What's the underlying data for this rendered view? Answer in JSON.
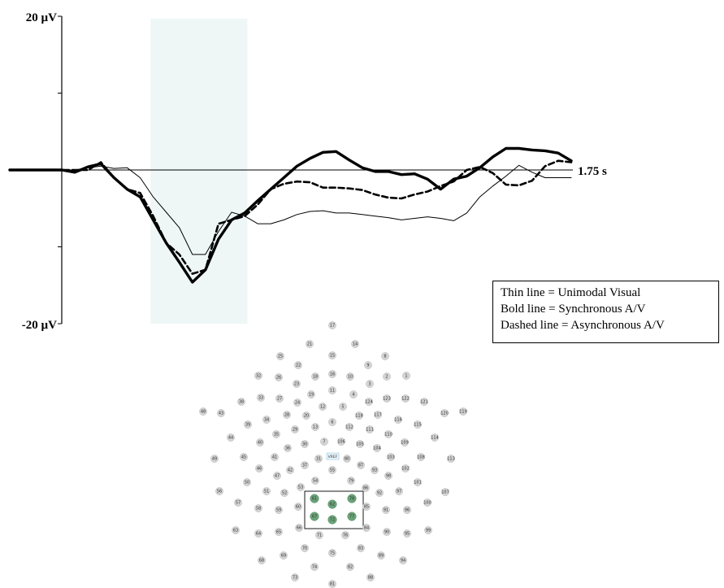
{
  "chart_data": {
    "type": "line",
    "title": "",
    "y_top_label": "20 µV",
    "y_bottom_label": "-20 µV",
    "x_end_label": "1.75 s",
    "ylim": [
      -20,
      20
    ],
    "xlim": [
      -0.2,
      1.75
    ],
    "shaded_window": [
      0.14,
      0.51
    ],
    "shade_color": "#eef7f6",
    "series": [
      {
        "id": "unimodal",
        "style": "thin",
        "x": [
          -0.2,
          -0.15,
          -0.1,
          -0.05,
          0.0,
          0.05,
          0.1,
          0.15,
          0.2,
          0.25,
          0.3,
          0.35,
          0.4,
          0.45,
          0.5,
          0.55,
          0.6,
          0.65,
          0.7,
          0.75,
          0.8,
          0.85,
          0.9,
          0.95,
          1.0,
          1.05,
          1.1,
          1.15,
          1.2,
          1.25,
          1.3,
          1.35,
          1.4,
          1.45,
          1.5,
          1.55,
          1.6,
          1.65,
          1.7,
          1.75
        ],
        "y": [
          0,
          0,
          0.3,
          0.5,
          0.2,
          0.3,
          -1,
          -3.5,
          -5.5,
          -7.5,
          -11,
          -11,
          -8,
          -5.5,
          -6,
          -7,
          -7,
          -6.5,
          -5.8,
          -5.4,
          -5.3,
          -5.6,
          -5.6,
          -5.8,
          -6,
          -6.2,
          -6.5,
          -6.3,
          -6.1,
          -6.3,
          -6.6,
          -5.6,
          -3.5,
          -2.1,
          -0.8,
          0.6,
          -0.3,
          -1,
          -1,
          -1
        ]
      },
      {
        "id": "synchronous",
        "style": "bold",
        "x": [
          -0.2,
          -0.15,
          -0.1,
          -0.05,
          0.0,
          0.05,
          0.1,
          0.15,
          0.2,
          0.25,
          0.3,
          0.35,
          0.4,
          0.45,
          0.5,
          0.55,
          0.6,
          0.65,
          0.7,
          0.75,
          0.8,
          0.85,
          0.9,
          0.95,
          1.0,
          1.05,
          1.1,
          1.15,
          1.2,
          1.25,
          1.3,
          1.35,
          1.4,
          1.45,
          1.5,
          1.55,
          1.6,
          1.65,
          1.7,
          1.75
        ],
        "y": [
          0,
          -0.3,
          0.4,
          0.8,
          -1,
          -2.5,
          -3.5,
          -6.5,
          -9.5,
          -12,
          -14.6,
          -13,
          -9,
          -6.5,
          -5.6,
          -4,
          -2.5,
          -1,
          0.5,
          1.5,
          2.3,
          2.4,
          1.3,
          0.3,
          -0.2,
          -0.2,
          -0.6,
          -0.5,
          -1.2,
          -2.5,
          -1.2,
          -0.8,
          0.3,
          1.7,
          2.8,
          2.8,
          2.6,
          2.5,
          2.2,
          1.2
        ]
      },
      {
        "id": "asynchronous",
        "style": "dashed",
        "x": [
          -0.2,
          -0.15,
          -0.1,
          -0.05,
          0.0,
          0.05,
          0.1,
          0.15,
          0.2,
          0.25,
          0.3,
          0.35,
          0.4,
          0.45,
          0.5,
          0.55,
          0.6,
          0.65,
          0.7,
          0.75,
          0.8,
          0.85,
          0.9,
          0.95,
          1.0,
          1.05,
          1.1,
          1.15,
          1.2,
          1.25,
          1.3,
          1.35,
          1.4,
          1.45,
          1.5,
          1.55,
          1.6,
          1.65,
          1.7,
          1.75
        ],
        "y": [
          0,
          0,
          0,
          1,
          -1,
          -2.5,
          -3,
          -6,
          -9.5,
          -11,
          -13.5,
          -13,
          -7,
          -6.5,
          -6,
          -4.5,
          -2.5,
          -1.8,
          -1.5,
          -1.6,
          -2.3,
          -2.3,
          -2.4,
          -2.6,
          -3.2,
          -3.6,
          -3.7,
          -3.2,
          -2.8,
          -2.1,
          -1.5,
          0,
          0.4,
          -0.4,
          -1.9,
          -2,
          -1.4,
          0.5,
          1.2,
          1
        ]
      }
    ]
  },
  "legend": {
    "thin": "Thin line = Unimodal Visual",
    "bold": "Bold line = Synchronous A/V",
    "dashed": "Dashed line = Asynchronous A/V"
  },
  "electrode_map": {
    "reference_label": "VREF",
    "normal_color": "#d4d4d4",
    "selected_color": "#6aa478",
    "electrodes": [
      "17",
      "21",
      "14",
      "25",
      "15",
      "22",
      "18",
      "16",
      "10",
      "9",
      "8",
      "2",
      "1",
      "32",
      "26",
      "23",
      "19",
      "11",
      "4",
      "3",
      "124",
      "123",
      "122",
      "121",
      "120",
      "119",
      "48",
      "43",
      "38",
      "33",
      "27",
      "24",
      "12",
      "5",
      "118",
      "117",
      "116",
      "115",
      "39",
      "34",
      "28",
      "20",
      "13",
      "6",
      "112",
      "111",
      "110",
      "114",
      "44",
      "40",
      "35",
      "29",
      "30",
      "7",
      "106",
      "105",
      "104",
      "109",
      "108",
      "113",
      "49",
      "45",
      "41",
      "36",
      "37",
      "31",
      "80",
      "87",
      "93",
      "103",
      "102",
      "46",
      "42",
      "47",
      "55",
      "98",
      "50",
      "51",
      "53",
      "54",
      "79",
      "86",
      "92",
      "97",
      "101",
      "107",
      "56",
      "57",
      "52",
      "60",
      "61",
      "62",
      "78",
      "85",
      "91",
      "96",
      "100",
      "58",
      "59",
      "67",
      "72",
      "77",
      "63",
      "64",
      "65",
      "66",
      "71",
      "76",
      "84",
      "90",
      "95",
      "99",
      "70",
      "75",
      "83",
      "89",
      "68",
      "69",
      "94",
      "74",
      "82",
      "73",
      "88",
      "81"
    ],
    "selected": [
      "61",
      "62",
      "67",
      "72",
      "77",
      "78"
    ]
  }
}
